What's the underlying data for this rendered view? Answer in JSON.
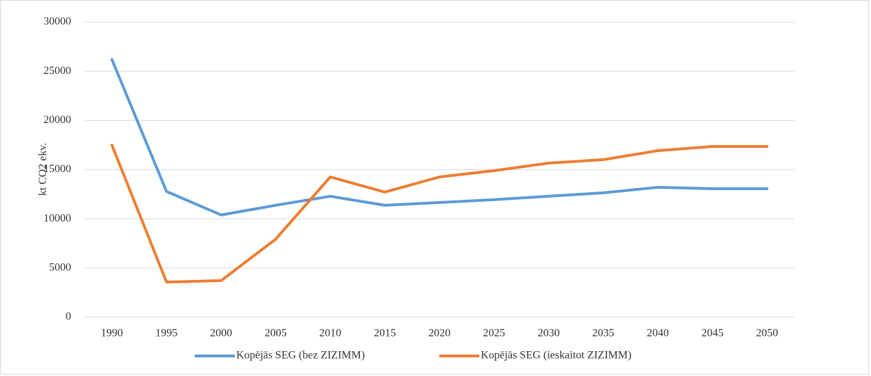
{
  "chart_data": {
    "type": "line",
    "y_label": "kt CO2 ekv.",
    "categories": [
      "1990",
      "1995",
      "2000",
      "2005",
      "2010",
      "2015",
      "2020",
      "2025",
      "2030",
      "2035",
      "2040",
      "2045",
      "2050"
    ],
    "series": [
      {
        "name": "Kopējās SEG (bez ZIZIMM)",
        "color": "#5b9bd5",
        "values": [
          26200,
          12790,
          10400,
          11380,
          12300,
          11380,
          11660,
          11950,
          12300,
          12650,
          13210,
          13070,
          13070
        ]
      },
      {
        "name": "Kopējās SEG (ieskaitot ZIZIMM)",
        "color": "#ed7d31",
        "values": [
          17500,
          3580,
          3720,
          7940,
          14260,
          12720,
          14260,
          14900,
          15670,
          16020,
          16930,
          17360,
          17360
        ]
      }
    ],
    "ylim": [
      0,
      30000
    ],
    "yticks": [
      0,
      5000,
      10000,
      15000,
      20000,
      25000,
      30000
    ],
    "grid": true,
    "legend": "bottom"
  }
}
